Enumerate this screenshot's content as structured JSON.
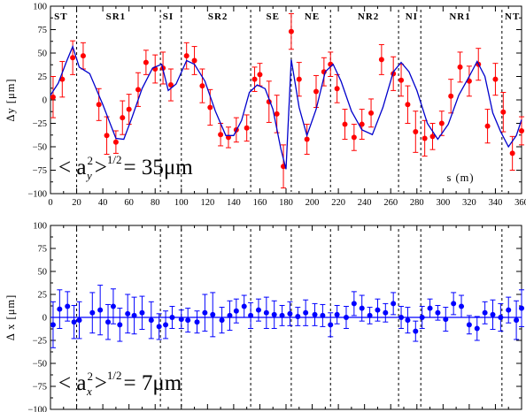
{
  "chart_data": [
    {
      "type": "scatter",
      "panel": "top",
      "ylabel": "Δy [μm]",
      "xlabel": "s (m)",
      "xlim": [
        0,
        360
      ],
      "ylim": [
        -100,
        100
      ],
      "xticks": [
        "0",
        "20",
        "40",
        "60",
        "80",
        "100",
        "120",
        "140",
        "160",
        "180",
        "200",
        "220",
        "240",
        "260",
        "280",
        "300",
        "320",
        "340",
        "360"
      ],
      "yticks": [
        "100",
        "75",
        "50",
        "25",
        "0",
        "-25",
        "-50",
        "-75",
        "-100"
      ],
      "segments": [
        {
          "label": "ST",
          "x": 8
        },
        {
          "label": "SR1",
          "x": 50
        },
        {
          "label": "SI",
          "x": 90
        },
        {
          "label": "SR2",
          "x": 128
        },
        {
          "label": "SE",
          "x": 170
        },
        {
          "label": "NE",
          "x": 200
        },
        {
          "label": "NR2",
          "x": 243
        },
        {
          "label": "NI",
          "x": 276
        },
        {
          "label": "NR1",
          "x": 313
        },
        {
          "label": "NT",
          "x": 353
        }
      ],
      "boundaries": [
        20,
        84,
        100,
        153,
        184,
        214,
        266,
        283,
        345
      ],
      "annotation": {
        "lhs": "< a",
        "sub": "y",
        "sup": "2",
        "exp": "1/2",
        "rhs": "= 35μm"
      },
      "series": [
        {
          "kind": "measured",
          "color": "#ff0000",
          "x": [
            2,
            9,
            17,
            25,
            37,
            43,
            50,
            55,
            60,
            67,
            73,
            80,
            86,
            92,
            104,
            110,
            116,
            122,
            130,
            136,
            142,
            150,
            156,
            160,
            167,
            173,
            178,
            184,
            190,
            196,
            203,
            209,
            214,
            219,
            225,
            232,
            238,
            245,
            253,
            262,
            268,
            273,
            279,
            286,
            292,
            299,
            306,
            313,
            320,
            327,
            334,
            340,
            346,
            353,
            360
          ],
          "y": [
            3,
            22,
            45,
            47,
            -5,
            -38,
            -45,
            -19,
            -10,
            11,
            40,
            33,
            34,
            16,
            47,
            42,
            15,
            -8,
            -37,
            -40,
            -32,
            -30,
            22,
            27,
            -2,
            -15,
            -71,
            73,
            22,
            -42,
            9,
            30,
            38,
            12,
            -26,
            -40,
            -26,
            -14,
            43,
            28,
            21,
            -5,
            -34,
            -41,
            -39,
            -25,
            4,
            35,
            20,
            38,
            -28,
            22,
            -13,
            -57,
            -33
          ],
          "err": [
            22,
            19,
            18,
            14,
            17,
            20,
            12,
            18,
            16,
            18,
            13,
            15,
            17,
            17,
            14,
            15,
            18,
            19,
            12,
            11,
            13,
            14,
            13,
            12,
            22,
            20,
            23,
            19,
            18,
            16,
            17,
            15,
            13,
            15,
            16,
            14,
            16,
            15,
            16,
            18,
            17,
            20,
            22,
            19,
            14,
            13,
            18,
            16,
            16,
            17,
            18,
            17,
            21,
            18,
            15
          ]
        },
        {
          "kind": "model",
          "color": "#0000cc",
          "x": [
            0,
            6,
            12,
            17,
            22,
            30,
            40,
            50,
            56,
            62,
            70,
            78,
            85,
            90,
            96,
            104,
            110,
            118,
            126,
            134,
            140,
            146,
            152,
            158,
            164,
            170,
            176,
            180,
            184,
            190,
            196,
            203,
            210,
            216,
            222,
            230,
            238,
            246,
            254,
            262,
            268,
            274,
            280,
            288,
            296,
            304,
            312,
            320,
            326,
            332,
            338,
            344,
            350,
            356,
            360
          ],
          "y": [
            5,
            18,
            40,
            57,
            35,
            28,
            -5,
            -41,
            -42,
            -20,
            12,
            34,
            38,
            10,
            17,
            42,
            38,
            20,
            -12,
            -38,
            -38,
            -22,
            8,
            16,
            12,
            -10,
            -52,
            -74,
            43,
            -8,
            -38,
            -10,
            30,
            38,
            20,
            -12,
            -32,
            -37,
            -8,
            30,
            40,
            30,
            10,
            -25,
            -42,
            -26,
            5,
            25,
            41,
            25,
            -14,
            -34,
            -50,
            -38,
            -21
          ]
        }
      ]
    },
    {
      "type": "scatter",
      "panel": "bottom",
      "ylabel": "Δ x [μm]",
      "xlim": [
        0,
        360
      ],
      "ylim": [
        -100,
        100
      ],
      "yticks": [
        "100",
        "75",
        "50",
        "25",
        "0",
        "-25",
        "-50",
        "-75",
        "-100"
      ],
      "boundaries": [
        20,
        84,
        100,
        153,
        184,
        214,
        266,
        283,
        345
      ],
      "annotation": {
        "lhs": "< a",
        "sub": "x",
        "sup": "2",
        "exp": "1/2",
        "rhs": "= 7μm"
      },
      "series": [
        {
          "kind": "measured",
          "color": "#0000ff",
          "x": [
            2,
            7,
            13,
            18,
            22,
            32,
            38,
            44,
            48,
            53,
            59,
            64,
            70,
            77,
            83,
            88,
            93,
            100,
            105,
            112,
            118,
            124,
            131,
            137,
            142,
            148,
            153,
            159,
            165,
            171,
            177,
            183,
            189,
            195,
            202,
            208,
            214,
            219,
            226,
            232,
            238,
            244,
            250,
            256,
            262,
            268,
            273,
            279,
            284,
            290,
            296,
            302,
            308,
            314,
            320,
            326,
            332,
            338,
            344,
            350,
            356,
            360
          ],
          "y": [
            -8,
            9,
            12,
            -5,
            -3,
            5,
            8,
            -5,
            12,
            -8,
            4,
            2,
            5,
            -3,
            -10,
            -8,
            0,
            -2,
            -3,
            -5,
            5,
            3,
            -3,
            2,
            7,
            12,
            2,
            8,
            5,
            3,
            2,
            4,
            1,
            5,
            3,
            2,
            -8,
            3,
            0,
            15,
            10,
            2,
            8,
            5,
            15,
            0,
            -3,
            -15,
            0,
            10,
            5,
            -2,
            15,
            12,
            -8,
            -12,
            5,
            3,
            0,
            8,
            -3,
            10
          ],
          "err": [
            25,
            21,
            16,
            18,
            20,
            22,
            27,
            19,
            19,
            18,
            21,
            20,
            18,
            20,
            14,
            15,
            12,
            10,
            13,
            12,
            20,
            24,
            14,
            16,
            13,
            12,
            14,
            12,
            17,
            15,
            11,
            13,
            10,
            14,
            12,
            12,
            13,
            10,
            12,
            13,
            14,
            9,
            12,
            10,
            12,
            12,
            14,
            11,
            12,
            10,
            8,
            13,
            12,
            12,
            10,
            13,
            12,
            16,
            15,
            14,
            21,
            20
          ]
        }
      ]
    }
  ]
}
